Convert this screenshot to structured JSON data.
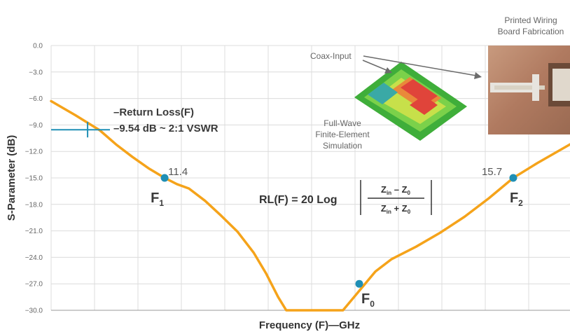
{
  "chart_data": {
    "type": "line",
    "title": "",
    "xlabel": "Frequency (F)—GHz",
    "ylabel": "S-Parameter (dB)",
    "ylim": [
      -30,
      0
    ],
    "yticks": [
      "0.0",
      "−3.0",
      "−6.0",
      "−9.0",
      "−12.0",
      "−15.0",
      "−18.0",
      "−21.0",
      "−24.0",
      "−27.0",
      "−30.0"
    ],
    "ytick_values": [
      0,
      -3,
      -6,
      -9,
      -12,
      -15,
      -18,
      -21,
      -24,
      -27,
      -30
    ],
    "xlim": [
      10,
      16.4
    ],
    "grid": true,
    "series": [
      {
        "x": [
          10.0,
          10.3,
          10.6,
          10.8,
          11.0,
          11.2,
          11.4,
          11.55,
          11.7,
          11.9,
          12.1,
          12.3,
          12.5,
          12.65,
          12.8,
          12.9,
          13.6,
          13.8,
          14.0,
          14.2,
          14.5,
          14.8,
          15.1,
          15.4,
          15.7,
          16.0,
          16.4
        ],
        "y": [
          -6.3,
          -7.9,
          -9.6,
          -11.2,
          -12.6,
          -13.9,
          -15.0,
          -15.7,
          -16.2,
          -17.6,
          -19.3,
          -21.1,
          -23.5,
          -25.8,
          -28.5,
          -30.0,
          -30.0,
          -27.8,
          -25.6,
          -24.2,
          -22.8,
          -21.2,
          -19.4,
          -17.3,
          -15.0,
          -13.3,
          -11.2
        ]
      }
    ],
    "markers": [
      {
        "x": 11.4,
        "y": -15.0,
        "value_label": "11.4",
        "label": "F",
        "sub": "1"
      },
      {
        "x": 13.8,
        "y": -27.0,
        "value_label": "",
        "label": "F",
        "sub": "0"
      },
      {
        "x": 15.7,
        "y": -15.0,
        "value_label": "15.7",
        "label": "F",
        "sub": "2"
      }
    ],
    "reference": {
      "y": -9.54,
      "x": 10.45,
      "line1": "–Return Loss(F)",
      "line2": "–9.54 dB ~ 2:1 VSWR"
    },
    "formula": {
      "lhs": "RL(F) = 20 Log",
      "num_a": "Z",
      "num_a_sub": "in",
      "num_op": " – ",
      "num_b": "Z",
      "num_b_sub": "0",
      "den_a": "Z",
      "den_a_sub": "in",
      "den_op": " + ",
      "den_b": "Z",
      "den_b_sub": "0"
    },
    "inset_labels": {
      "printed_line1": "Printed Wiring",
      "printed_line2": "Board Fabrication",
      "coax": "Coax-Input",
      "sim_line1": "Full-Wave",
      "sim_line2": "Finite-Element",
      "sim_line3": "Simulation"
    },
    "colors": {
      "curve": "#f5a31a",
      "marker": "#1f8fb5",
      "grid": "#dcdcdc",
      "reference": "#1f8fb5"
    }
  }
}
